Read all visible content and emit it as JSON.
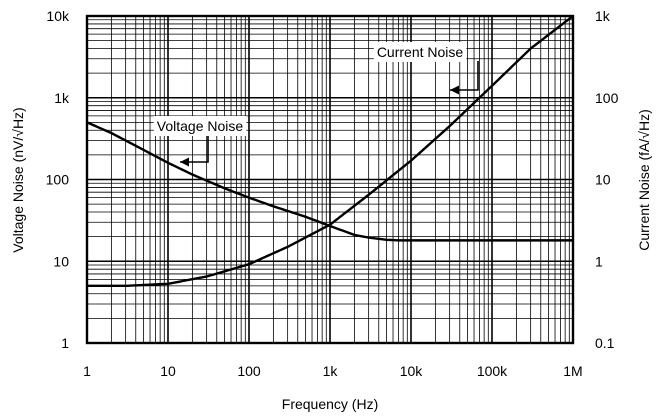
{
  "chart_data": {
    "type": "line",
    "xlabel": "Frequency (Hz)",
    "ylabel": "Voltage Noise (nV/√Hz)",
    "ylabel_right": "Current Noise (fA/√Hz)",
    "xscale": "log",
    "yscale": "log",
    "xlim": [
      1,
      1000000
    ],
    "ylim": [
      1,
      10000
    ],
    "ylim_right": [
      0.1,
      1000
    ],
    "grid": true,
    "x_ticks": [
      "1",
      "10",
      "100",
      "1k",
      "10k",
      "100k",
      "1M"
    ],
    "y_ticks": [
      "1",
      "10",
      "100",
      "1k",
      "10k"
    ],
    "y_ticks_right": [
      "0.1",
      "1",
      "10",
      "100",
      "1k"
    ],
    "series": [
      {
        "name": "Voltage Noise",
        "axis": "left",
        "x": [
          1,
          2,
          5,
          10,
          20,
          50,
          100,
          200,
          500,
          1000,
          2000,
          3000,
          5000,
          7000,
          10000,
          100000,
          1000000
        ],
        "y": [
          500,
          370,
          230,
          160,
          115,
          78,
          60,
          47,
          35,
          27,
          21,
          19.5,
          18.3,
          18,
          18,
          18,
          18
        ]
      },
      {
        "name": "Current Noise",
        "axis": "right",
        "x": [
          1,
          3,
          10,
          30,
          100,
          300,
          1000,
          3000,
          10000,
          30000,
          100000,
          300000,
          1000000
        ],
        "y": [
          0.5,
          0.5,
          0.53,
          0.65,
          0.92,
          1.5,
          2.8,
          6.5,
          17,
          45,
          140,
          400,
          1000
        ]
      }
    ],
    "annotations": [
      {
        "text": "Voltage Noise",
        "series": "Voltage Noise"
      },
      {
        "text": "Current Noise",
        "series": "Current Noise"
      }
    ]
  }
}
